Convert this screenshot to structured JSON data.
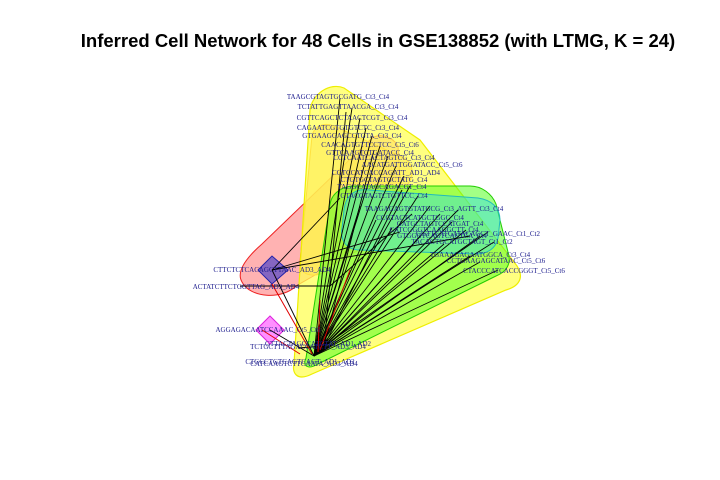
{
  "title": "Inferred Cell Network for 48 Cells in GSE138852 (with LTMG, K = 24)",
  "colors": {
    "background": "#ffffff",
    "label": "#1a1a8c",
    "edge": "#000000",
    "cluster_red": "#ff6666",
    "cluster_orange": "#ffbb55",
    "cluster_yellow": "#ffff66",
    "cluster_green": "#66ff33",
    "cluster_cyan": "#44dddd",
    "cluster_blue": "#3333cc",
    "cluster_magenta": "#ff44ff"
  },
  "clusters": [
    {
      "id": "red",
      "color": "#ff5555"
    },
    {
      "id": "orange",
      "color": "#ffaa44"
    },
    {
      "id": "yellow",
      "color": "#ffff55"
    },
    {
      "id": "green",
      "color": "#55ff22"
    },
    {
      "id": "cyan",
      "color": "#33dddd"
    },
    {
      "id": "blue",
      "color": "#3333cc"
    },
    {
      "id": "magenta",
      "color": "#ff44ff"
    }
  ],
  "labels": [
    "TAAGCGTAGTGCGATG_Ct3_Ct4",
    "TCTATTGAGTTAACGA_Ct3_Ct4",
    "CGTTCAGCTCTAACTCGT_Ct3_Ct4",
    "CAGAATCGTGTGTCTC_Ct3_Ct4",
    "GTGAAGGAGCCTGTA_Ct3_Ct4",
    "CAACAGTGTTCCTCC_Ct5_Ct6",
    "GTTCAAGTCTGATACC_Ct4",
    "CCTCAATCACTAGTCG_Ct3_Ct4",
    "AACATGATTGGATACC_Ct5_Ct6",
    "CGTCCATCACCAGATT_AD1_AD4",
    "CTGTGCTAGTGCTATG_Ct4",
    "TAGGCATAGCAGACGT_Ct4",
    "GTACGTAGTCTGTTCC_Ct4",
    "TAAGAGAGTGTATGCG_Ct3_AGTT_Ct3_Ct4",
    "CCGTACTCATGCTGGC_Ct4",
    "GATGCTAGTCCATGAT_Ct4",
    "CATCGGGTCAAGGCTT_Ct4",
    "GTGGGTCAGTCACTCA_Ct4",
    "GGTTCATCATACAGCT_GAAC_Ct1_Ct2",
    "TACAGTGCATGCTAGT_Ct1_Ct2",
    "TGAAAGAGAATGGCA_Ct3_Ct4",
    "CCTGAAGAGCATAAC_Ct5_Ct6",
    "CTACCCATCACCGGGT_Ct5_Ct6",
    "CTTCTCTCACAGCTTAAC_AD3_AD4",
    "ACTATCTTCTGGTTAG_AD3_AD4",
    "AGGAGACAATCCAAAC_Ct5_Ct6",
    "TCTGCTTTAGACCATCTT_AD3_AD4",
    "CATCAAGTCTTCAATA_AD3_AD4",
    "GTTACTAGCCATGTAT_AD1_AD2",
    "CTGCCTGTCAGTCAGT_AD1_AD2"
  ]
}
